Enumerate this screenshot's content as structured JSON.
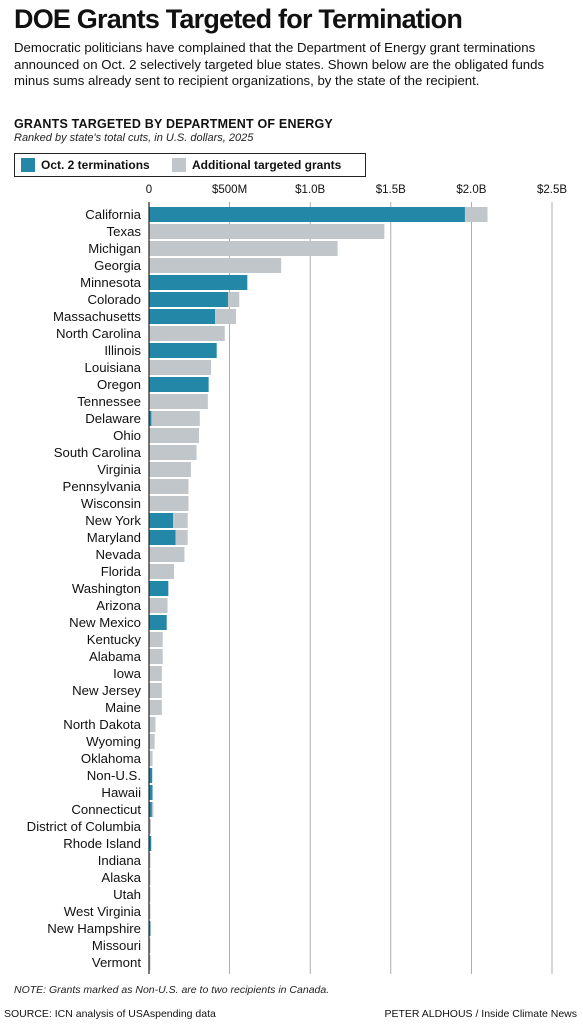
{
  "header": {
    "title": "DOE Grants Targeted for Termination",
    "intro": "Democratic politicians have complained that the Department of Energy grant terminations announced on Oct. 2 selectively targeted blue states. Shown below are the obligated funds minus sums already sent to recipient organizations, by the state of the recipient."
  },
  "chart_head": "GRANTS TARGETED BY DEPARTMENT OF ENERGY",
  "chart_sub": "Ranked by state's total cuts, in U.S. dollars, 2025",
  "legend": {
    "oct2": "Oct. 2 terminations",
    "additional": "Additional targeted grants"
  },
  "colors": {
    "oct2": "#2388a7",
    "additional": "#c0c6ca",
    "axis": "#222222",
    "grid": "#999999"
  },
  "note": "NOTE: Grants marked as Non-U.S. are to two recipients in Canada.",
  "source": "SOURCE: ICN analysis of USAspending data",
  "credit": "PETER ALDHOUS / Inside Climate News",
  "chart_data": {
    "type": "bar",
    "orientation": "horizontal",
    "stacked": true,
    "title": "GRANTS TARGETED BY DEPARTMENT OF ENERGY",
    "subtitle": "Ranked by state's total cuts, in U.S. dollars, 2025",
    "xlim": [
      0,
      2500000000
    ],
    "ticks": [
      0,
      500000000,
      1000000000,
      1500000000,
      2000000000,
      2500000000
    ],
    "tick_labels": [
      "0",
      "$500M",
      "$1.0B",
      "$1.5B",
      "$2.0B",
      "$2.5B"
    ],
    "grid": true,
    "legend_position": "top-left",
    "categories": [
      "California",
      "Texas",
      "Michigan",
      "Georgia",
      "Minnesota",
      "Colorado",
      "Massachusetts",
      "North Carolina",
      "Illinois",
      "Louisiana",
      "Oregon",
      "Tennessee",
      "Delaware",
      "Ohio",
      "South Carolina",
      "Virginia",
      "Pennsylvania",
      "Wisconsin",
      "New York",
      "Maryland",
      "Nevada",
      "Florida",
      "Washington",
      "Arizona",
      "New Mexico",
      "Kentucky",
      "Alabama",
      "Iowa",
      "New Jersey",
      "Maine",
      "North Dakota",
      "Wyoming",
      "Oklahoma",
      "Non-U.S.",
      "Hawaii",
      "Connecticut",
      "District of Columbia",
      "Rhode Island",
      "Indiana",
      "Alaska",
      "Utah",
      "West Virginia",
      "New Hampshire",
      "Missouri",
      "Vermont"
    ],
    "series": [
      {
        "name": "Oct. 2 terminations",
        "values": [
          1960000000,
          0,
          0,
          0,
          610000000,
          490000000,
          410000000,
          0,
          420000000,
          0,
          370000000,
          0,
          15000000,
          0,
          0,
          0,
          0,
          0,
          150000000,
          165000000,
          0,
          0,
          120000000,
          0,
          110000000,
          0,
          0,
          0,
          4000000,
          0,
          0,
          0,
          0,
          20000000,
          22000000,
          18000000,
          0,
          14000000,
          0,
          0,
          0,
          0,
          5000000,
          0,
          0
        ]
      },
      {
        "name": "Additional targeted grants",
        "values": [
          140000000,
          1460000000,
          1170000000,
          820000000,
          0,
          70000000,
          130000000,
          470000000,
          0,
          385000000,
          0,
          365000000,
          300000000,
          310000000,
          295000000,
          260000000,
          245000000,
          245000000,
          90000000,
          75000000,
          220000000,
          155000000,
          0,
          115000000,
          0,
          85000000,
          85000000,
          80000000,
          76000000,
          80000000,
          40000000,
          35000000,
          22000000,
          0,
          0,
          2000000,
          12000000,
          0,
          6000000,
          4000000,
          3000000,
          2000000,
          0,
          2000000,
          1500000
        ]
      }
    ]
  }
}
